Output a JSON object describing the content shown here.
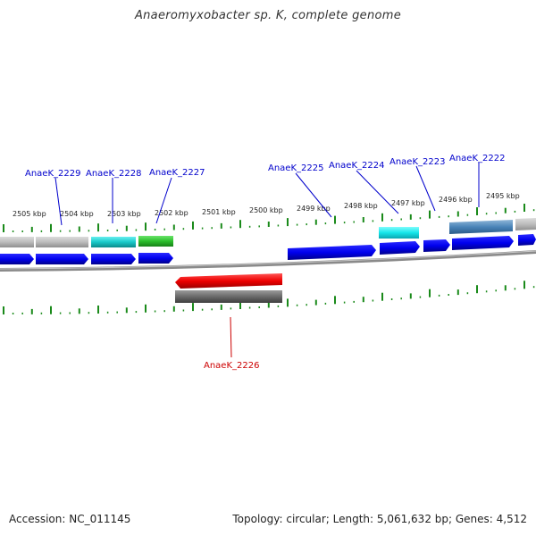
{
  "title": "Anaeromyxobacter sp. K, complete genome",
  "footer": {
    "accession": "Accession: NC_011145",
    "summary": "Topology: circular; Length: 5,061,632 bp; Genes: 4,512"
  },
  "colors": {
    "label_blue": "#0000cc",
    "label_red": "#cc0000",
    "tick_green": "#1a8a1a",
    "backbone": "#8a8a8a"
  },
  "kbp_ticks": [
    "2505 kbp",
    "2504 kbp",
    "2503 kbp",
    "2502 kbp",
    "2501 kbp",
    "2500 kbp",
    "2499 kbp",
    "2498 kbp",
    "2497 kbp",
    "2496 kbp",
    "2495 kbp"
  ],
  "gene_labels": [
    {
      "text": "AnaeK_2229",
      "color": "blue"
    },
    {
      "text": "AnaeK_2228",
      "color": "blue"
    },
    {
      "text": "AnaeK_2227",
      "color": "blue"
    },
    {
      "text": "AnaeK_2225",
      "color": "blue"
    },
    {
      "text": "AnaeK_2224",
      "color": "blue"
    },
    {
      "text": "AnaeK_2223",
      "color": "blue"
    },
    {
      "text": "AnaeK_2222",
      "color": "blue"
    },
    {
      "text": "AnaeK_2226",
      "color": "red"
    }
  ]
}
